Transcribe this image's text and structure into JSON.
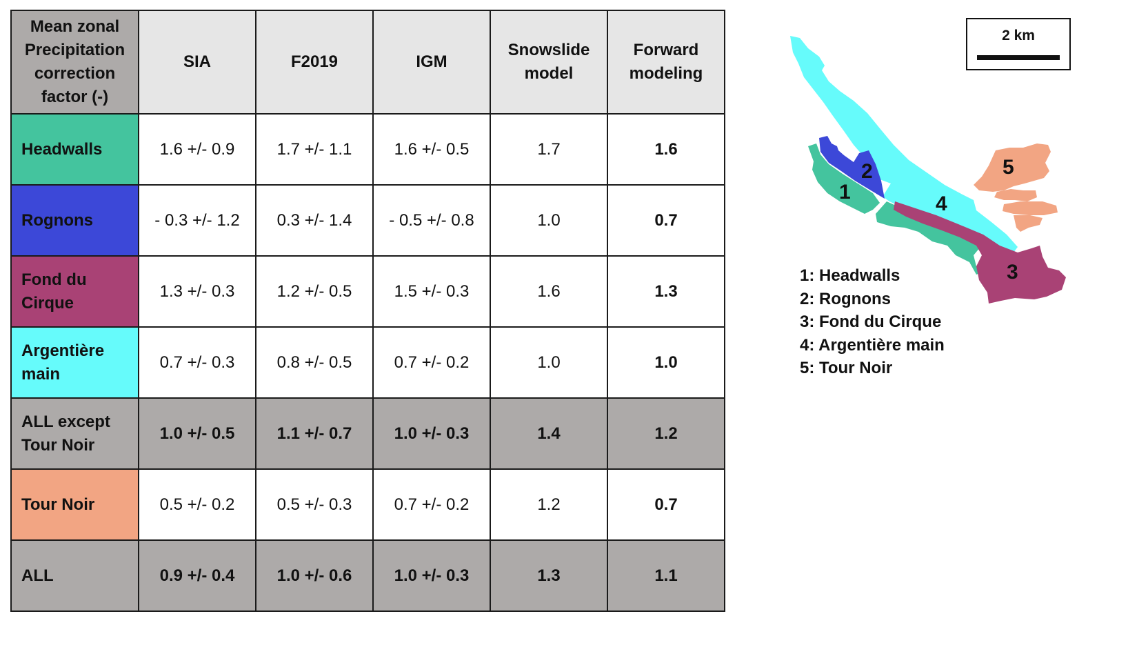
{
  "table": {
    "header": {
      "corner": "Mean zonal Precipitation correction factor (-)",
      "col1": "SIA",
      "col2": "F2019",
      "col3": "IGM",
      "col4": "Snowslide model",
      "col5": "Forward modeling"
    },
    "rows": [
      {
        "label": "Headwalls",
        "color": "#44c49e",
        "sia": "1.6 +/- 0.9",
        "f2019": "1.7 +/- 1.1",
        "igm": "1.6 +/- 0.5",
        "snowslide": "1.7",
        "forward": "1.6"
      },
      {
        "label": "Rognons",
        "color": "#3c48d8",
        "sia": "- 0.3 +/- 1.2",
        "f2019": "0.3 +/- 1.4",
        "igm": "- 0.5 +/- 0.8",
        "snowslide": "1.0",
        "forward": "0.7"
      },
      {
        "label": "Fond du Cirque",
        "color": "#a94275",
        "sia": "1.3 +/- 0.3",
        "f2019": "1.2 +/- 0.5",
        "igm": "1.5 +/- 0.3",
        "snowslide": "1.6",
        "forward": "1.3"
      },
      {
        "label": "Argentière main",
        "color": "#66fbfb",
        "sia": "0.7 +/- 0.3",
        "f2019": "0.8 +/- 0.5",
        "igm": "0.7 +/- 0.2",
        "snowslide": "1.0",
        "forward": "1.0"
      },
      {
        "label": "ALL except Tour Noir",
        "color": "#adaaa9",
        "sia": "1.0 +/- 0.5",
        "f2019": "1.1 +/- 0.7",
        "igm": "1.0 +/- 0.3",
        "snowslide": "1.4",
        "forward": "1.2"
      },
      {
        "label": "Tour Noir",
        "color": "#f2a583",
        "sia": "0.5 +/- 0.2",
        "f2019": "0.5 +/- 0.3",
        "igm": "0.7 +/- 0.2",
        "snowslide": "1.2",
        "forward": "0.7"
      },
      {
        "label": "ALL",
        "color": "#adaaa9",
        "sia": "0.9 +/- 0.4",
        "f2019": "1.0 +/- 0.6",
        "igm": "1.0 +/- 0.3",
        "snowslide": "1.3",
        "forward": "1.1"
      }
    ]
  },
  "scale": {
    "label": "2 km"
  },
  "map": {
    "numbers": [
      "1",
      "2",
      "3",
      "4",
      "5"
    ],
    "colors": {
      "headwalls": "#44c49e",
      "rognons": "#3c48d8",
      "fond_du_cirque": "#a94275",
      "argentiere_main": "#66fbfb",
      "tour_noir": "#f2a583"
    }
  },
  "legend": [
    "1: Headwalls",
    "2: Rognons",
    "3: Fond du Cirque",
    "4: Argentière main",
    "5: Tour Noir"
  ]
}
